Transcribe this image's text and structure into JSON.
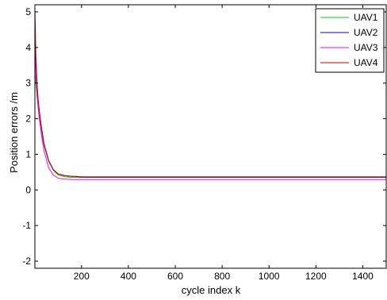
{
  "chart_data": {
    "type": "line",
    "title": "",
    "xlabel": "cycle index k",
    "ylabel": "Position errors /m",
    "xlim": [
      1,
      1500
    ],
    "ylim": [
      -2.2,
      5.2
    ],
    "xticks": [
      200,
      400,
      600,
      800,
      1000,
      1200,
      1400
    ],
    "yticks": [
      -2,
      -1,
      0,
      1,
      2,
      3,
      4,
      5
    ],
    "grid": false,
    "legend_position": "top-right",
    "series": [
      {
        "name": "UAV1",
        "color": "#00cc00",
        "x": [
          1,
          5,
          10,
          15,
          20,
          30,
          40,
          60,
          80,
          100,
          130,
          160,
          200,
          400,
          600,
          800,
          1000,
          1200,
          1400,
          1500
        ],
        "y": [
          3.3,
          3.0,
          2.6,
          2.3,
          2.0,
          1.6,
          1.25,
          0.8,
          0.55,
          0.42,
          0.37,
          0.35,
          0.35,
          0.35,
          0.35,
          0.35,
          0.35,
          0.35,
          0.35,
          0.35
        ]
      },
      {
        "name": "UAV2",
        "color": "#0000cc",
        "x": [
          1,
          5,
          10,
          15,
          20,
          30,
          40,
          60,
          80,
          100,
          130,
          160,
          180,
          200,
          400,
          600,
          800,
          1000,
          1200,
          1400,
          1500
        ],
        "y": [
          4.35,
          3.6,
          2.9,
          2.5,
          2.2,
          1.7,
          1.3,
          0.82,
          0.57,
          0.45,
          0.4,
          0.38,
          0.38,
          0.36,
          0.36,
          0.36,
          0.36,
          0.36,
          0.36,
          0.36,
          0.36
        ]
      },
      {
        "name": "UAV3",
        "color": "#ff00ff",
        "x": [
          1,
          5,
          10,
          15,
          20,
          30,
          40,
          60,
          80,
          100,
          130,
          160,
          200,
          400,
          600,
          800,
          1000,
          1200,
          1400,
          1500
        ],
        "y": [
          3.7,
          3.3,
          2.75,
          2.35,
          2.0,
          1.5,
          1.1,
          0.62,
          0.42,
          0.33,
          0.3,
          0.29,
          0.29,
          0.29,
          0.29,
          0.29,
          0.29,
          0.29,
          0.29,
          0.29
        ]
      },
      {
        "name": "UAV4",
        "color": "#cc0000",
        "x": [
          1,
          5,
          10,
          15,
          20,
          30,
          40,
          60,
          80,
          100,
          130,
          160,
          200,
          400,
          600,
          800,
          1000,
          1200,
          1400,
          1500
        ],
        "y": [
          5.1,
          3.8,
          3.0,
          2.55,
          2.2,
          1.7,
          1.3,
          0.82,
          0.57,
          0.45,
          0.4,
          0.38,
          0.37,
          0.37,
          0.37,
          0.37,
          0.37,
          0.37,
          0.37,
          0.37
        ]
      }
    ]
  }
}
